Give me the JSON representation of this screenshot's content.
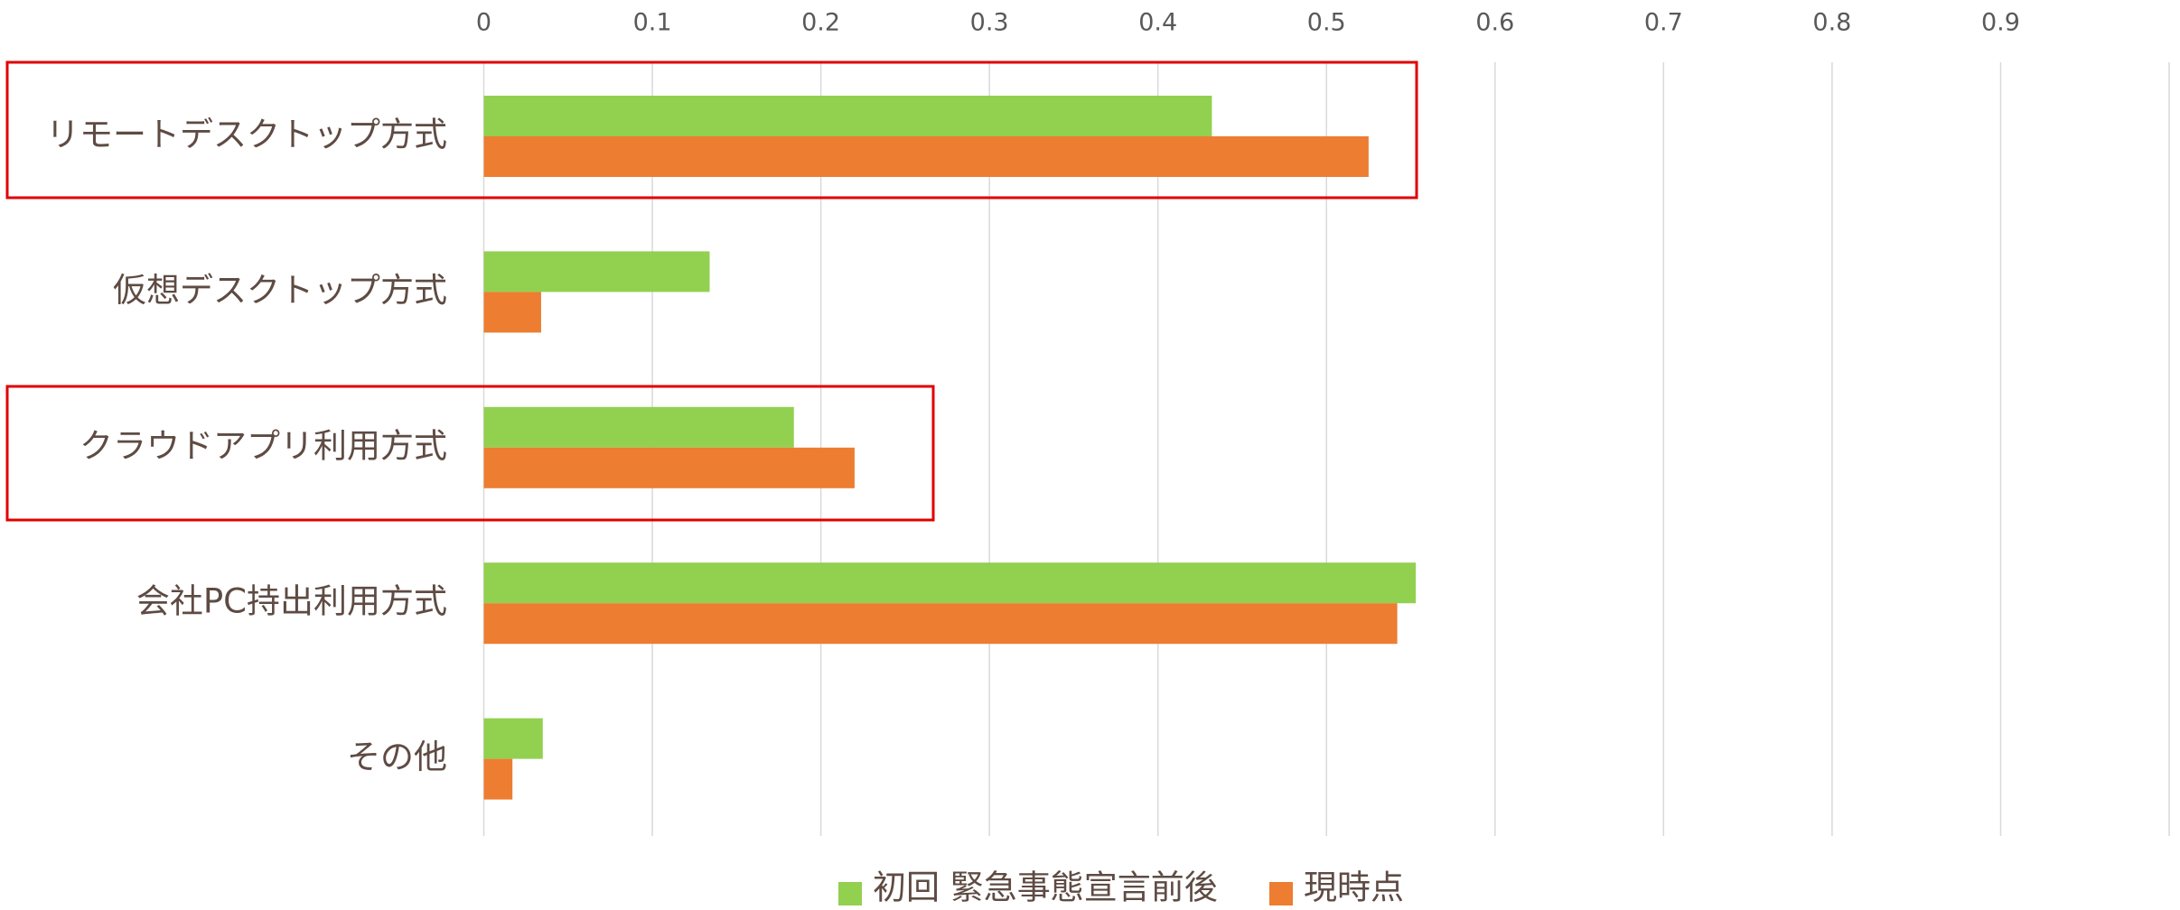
{
  "chart_data": {
    "type": "bar",
    "orientation": "horizontal",
    "categories": [
      "リモートデスクトップ方式",
      "仮想デスクトップ方式",
      "クラウドアプリ利用方式",
      "会社PC持出利用方式",
      "その他"
    ],
    "series": [
      {
        "name": "初回 緊急事態宣言前後",
        "color": "#92d050",
        "values": [
          0.432,
          0.134,
          0.184,
          0.553,
          0.035
        ]
      },
      {
        "name": "現時点",
        "color": "#ed7d31",
        "values": [
          0.525,
          0.034,
          0.22,
          0.542,
          0.017
        ]
      }
    ],
    "xlim": [
      0,
      1
    ],
    "xticks": [
      0,
      0.1,
      0.2,
      0.3,
      0.4,
      0.5,
      0.6,
      0.7,
      0.8,
      0.9
    ],
    "grid": true,
    "legend": "bottom"
  }
}
